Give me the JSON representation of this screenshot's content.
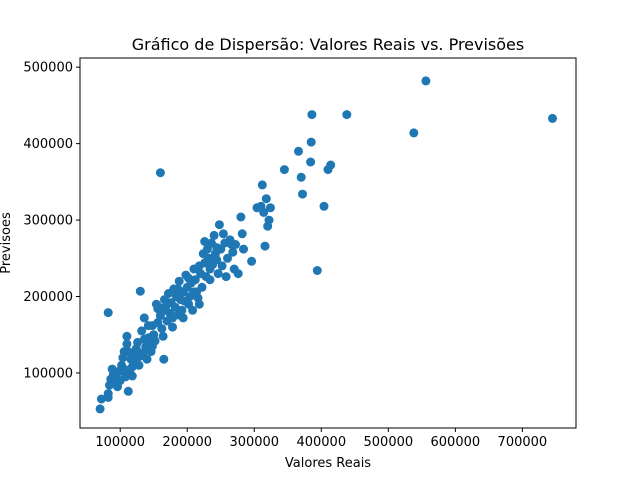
{
  "chart_data": {
    "type": "scatter",
    "title": "Gráfico de Dispersão: Valores Reais vs. Previsões",
    "xlabel": "Valores Reais",
    "ylabel": "Previsoes",
    "xlim": [
      40000,
      780000
    ],
    "ylim": [
      28000,
      512000
    ],
    "x_ticks": [
      100000,
      200000,
      300000,
      400000,
      500000,
      600000,
      700000
    ],
    "y_ticks": [
      100000,
      200000,
      300000,
      400000,
      500000
    ],
    "x_tick_labels": [
      "100000",
      "200000",
      "300000",
      "400000",
      "500000",
      "600000",
      "700000"
    ],
    "y_tick_labels": [
      "100000",
      "200000",
      "300000",
      "400000",
      "500000"
    ],
    "grid": false,
    "legend": false,
    "marker_color": "#1f77b4",
    "points": [
      [
        70000,
        53000
      ],
      [
        72000,
        66000
      ],
      [
        82000,
        68000
      ],
      [
        82000,
        73000
      ],
      [
        84000,
        84000
      ],
      [
        86000,
        92000
      ],
      [
        88000,
        105000
      ],
      [
        90000,
        98000
      ],
      [
        92000,
        88000
      ],
      [
        94000,
        96000
      ],
      [
        96000,
        82000
      ],
      [
        98000,
        102000
      ],
      [
        100000,
        90000
      ],
      [
        102000,
        110000
      ],
      [
        104000,
        120000
      ],
      [
        106000,
        128000
      ],
      [
        108000,
        95000
      ],
      [
        110000,
        138000
      ],
      [
        110000,
        148000
      ],
      [
        112000,
        76000
      ],
      [
        114000,
        102000
      ],
      [
        116000,
        118000
      ],
      [
        118000,
        108000
      ],
      [
        120000,
        125000
      ],
      [
        122000,
        115000
      ],
      [
        124000,
        132000
      ],
      [
        126000,
        140000
      ],
      [
        128000,
        110000
      ],
      [
        130000,
        122000
      ],
      [
        132000,
        155000
      ],
      [
        134000,
        126000
      ],
      [
        136000,
        172000
      ],
      [
        138000,
        134000
      ],
      [
        140000,
        118000
      ],
      [
        142000,
        146000
      ],
      [
        144000,
        138000
      ],
      [
        146000,
        128000
      ],
      [
        148000,
        162000
      ],
      [
        150000,
        150000
      ],
      [
        152000,
        142000
      ],
      [
        154000,
        190000
      ],
      [
        156000,
        166000
      ],
      [
        158000,
        186000
      ],
      [
        160000,
        175000
      ],
      [
        162000,
        158000
      ],
      [
        164000,
        148000
      ],
      [
        165000,
        118000
      ],
      [
        166000,
        196000
      ],
      [
        168000,
        182000
      ],
      [
        170000,
        168000
      ],
      [
        172000,
        204000
      ],
      [
        174000,
        178000
      ],
      [
        176000,
        192000
      ],
      [
        178000,
        172000
      ],
      [
        180000,
        210000
      ],
      [
        182000,
        186000
      ],
      [
        184000,
        200000
      ],
      [
        186000,
        176000
      ],
      [
        188000,
        220000
      ],
      [
        190000,
        196000
      ],
      [
        192000,
        182000
      ],
      [
        194000,
        206000
      ],
      [
        196000,
        194000
      ],
      [
        198000,
        228000
      ],
      [
        200000,
        212000
      ],
      [
        202000,
        190000
      ],
      [
        204000,
        200000
      ],
      [
        206000,
        218000
      ],
      [
        208000,
        182000
      ],
      [
        210000,
        236000
      ],
      [
        212000,
        222000
      ],
      [
        214000,
        206000
      ],
      [
        216000,
        198000
      ],
      [
        218000,
        240000
      ],
      [
        220000,
        230000
      ],
      [
        222000,
        212000
      ],
      [
        224000,
        256000
      ],
      [
        226000,
        244000
      ],
      [
        228000,
        226000
      ],
      [
        230000,
        262000
      ],
      [
        232000,
        250000
      ],
      [
        234000,
        236000
      ],
      [
        236000,
        270000
      ],
      [
        238000,
        242000
      ],
      [
        240000,
        280000
      ],
      [
        242000,
        256000
      ],
      [
        244000,
        248000
      ],
      [
        246000,
        230000
      ],
      [
        248000,
        294000
      ],
      [
        250000,
        262000
      ],
      [
        252000,
        240000
      ],
      [
        256000,
        270000
      ],
      [
        258000,
        226000
      ],
      [
        260000,
        250000
      ],
      [
        264000,
        274000
      ],
      [
        268000,
        258000
      ],
      [
        270000,
        236000
      ],
      [
        272000,
        268000
      ],
      [
        276000,
        230000
      ],
      [
        280000,
        304000
      ],
      [
        282000,
        282000
      ],
      [
        284000,
        262000
      ],
      [
        296000,
        246000
      ],
      [
        304000,
        316000
      ],
      [
        310000,
        318000
      ],
      [
        312000,
        346000
      ],
      [
        314000,
        310000
      ],
      [
        316000,
        266000
      ],
      [
        318000,
        328000
      ],
      [
        320000,
        292000
      ],
      [
        322000,
        300000
      ],
      [
        324000,
        316000
      ],
      [
        345000,
        366000
      ],
      [
        366000,
        390000
      ],
      [
        370000,
        356000
      ],
      [
        372000,
        334000
      ],
      [
        384000,
        376000
      ],
      [
        385000,
        402000
      ],
      [
        386000,
        438000
      ],
      [
        394000,
        234000
      ],
      [
        404000,
        318000
      ],
      [
        410000,
        366000
      ],
      [
        414000,
        372000
      ],
      [
        438000,
        438000
      ],
      [
        538000,
        414000
      ],
      [
        556000,
        482000
      ],
      [
        745000,
        433000
      ],
      [
        160000,
        362000
      ],
      [
        82000,
        179000
      ],
      [
        130000,
        207000
      ],
      [
        108000,
        104000
      ],
      [
        112000,
        128000
      ],
      [
        118000,
        96000
      ],
      [
        124000,
        118000
      ],
      [
        136000,
        144000
      ],
      [
        142000,
        162000
      ],
      [
        148000,
        135000
      ],
      [
        156000,
        184000
      ],
      [
        170000,
        190000
      ],
      [
        178000,
        160000
      ],
      [
        186000,
        210000
      ],
      [
        194000,
        172000
      ],
      [
        202000,
        224000
      ],
      [
        210000,
        206000
      ],
      [
        218000,
        190000
      ],
      [
        226000,
        272000
      ],
      [
        234000,
        222000
      ],
      [
        244000,
        264000
      ],
      [
        254000,
        282000
      ],
      [
        266000,
        268000
      ]
    ]
  }
}
